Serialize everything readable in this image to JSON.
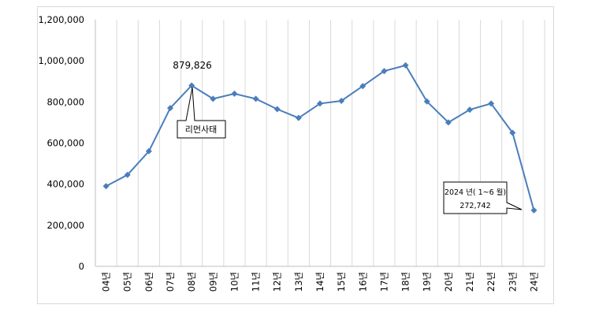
{
  "chart_data": {
    "type": "line",
    "categories": [
      "04년",
      "05년",
      "06년",
      "07년",
      "08년",
      "09년",
      "10년",
      "11년",
      "12년",
      "13년",
      "14년",
      "15년",
      "16년",
      "17년",
      "18년",
      "19년",
      "20년",
      "21년",
      "22년",
      "23년",
      "24년"
    ],
    "series": [
      {
        "values": [
          390000,
          445000,
          560000,
          770000,
          879826,
          815000,
          840000,
          815000,
          765000,
          722000,
          792000,
          805000,
          877000,
          950000,
          978000,
          802000,
          700000,
          762000,
          792000,
          650000,
          272742
        ],
        "color": "#4a7ebb"
      }
    ],
    "ylim": [
      0,
      1200000
    ],
    "yticks": [
      "0",
      "200,000",
      "400,000",
      "600,000",
      "800,000",
      "1,000,000",
      "1,200,000"
    ],
    "grid": "vertical",
    "annotations": {
      "peak_value": "879,826",
      "event_label": "리먼사태",
      "last_period": "2024 년( 1~6 월)",
      "last_value": "272,742"
    }
  }
}
